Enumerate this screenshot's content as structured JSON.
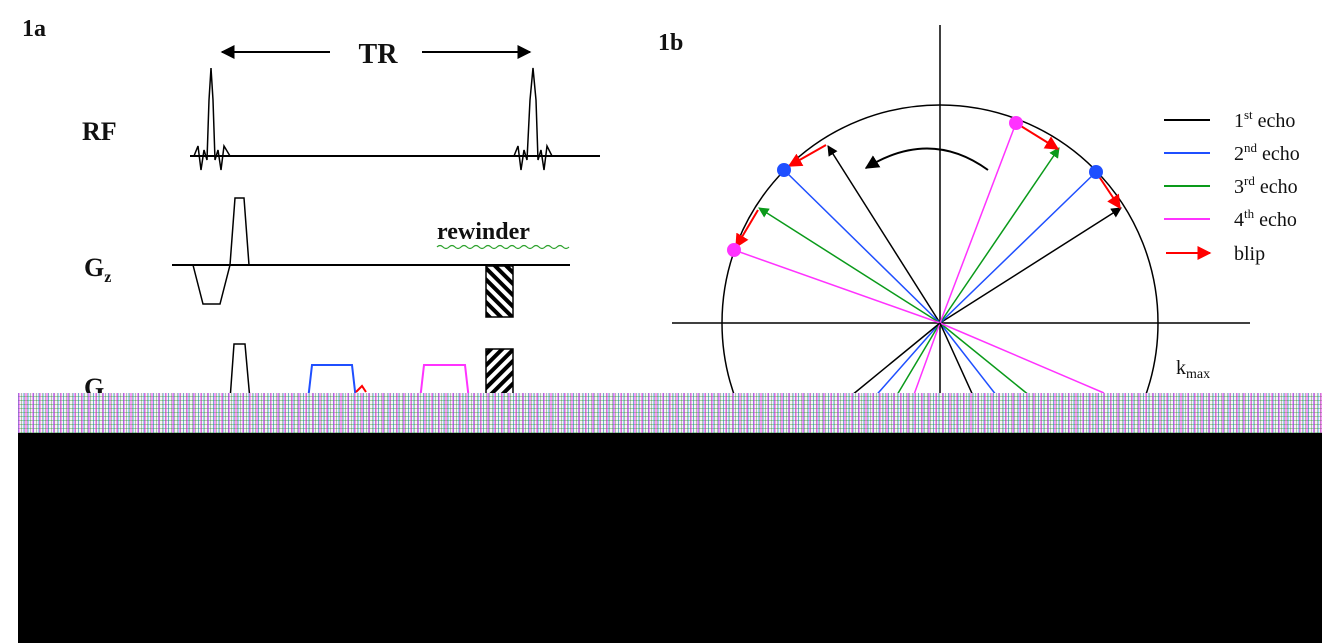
{
  "panel_a": {
    "label": "1a",
    "tr_label": "TR",
    "rf_label": "RF",
    "gz_label": "G",
    "gz_sub": "z",
    "gx_label": "G",
    "rewinder_label": "rewinder"
  },
  "panel_b": {
    "label": "1b",
    "kmax_label": "k",
    "kmax_sub": "max",
    "legend": [
      {
        "num": "1",
        "sup": "st",
        "text": " echo",
        "color": "#000000"
      },
      {
        "num": "2",
        "sup": "nd",
        "text": " echo",
        "color": "#1f4fff"
      },
      {
        "num": "3",
        "sup": "rd",
        "text": " echo",
        "color": "#0a9a1a"
      },
      {
        "num": "4",
        "sup": "th",
        "text": " echo",
        "color": "#ff33ff"
      },
      {
        "num": "",
        "sup": "",
        "text": "blip",
        "color": "#ff0000"
      }
    ]
  },
  "colors": {
    "echo1": "#000000",
    "echo2": "#1f4fff",
    "echo3": "#0a9a1a",
    "echo4": "#ff33ff",
    "blip": "#ff0000"
  }
}
